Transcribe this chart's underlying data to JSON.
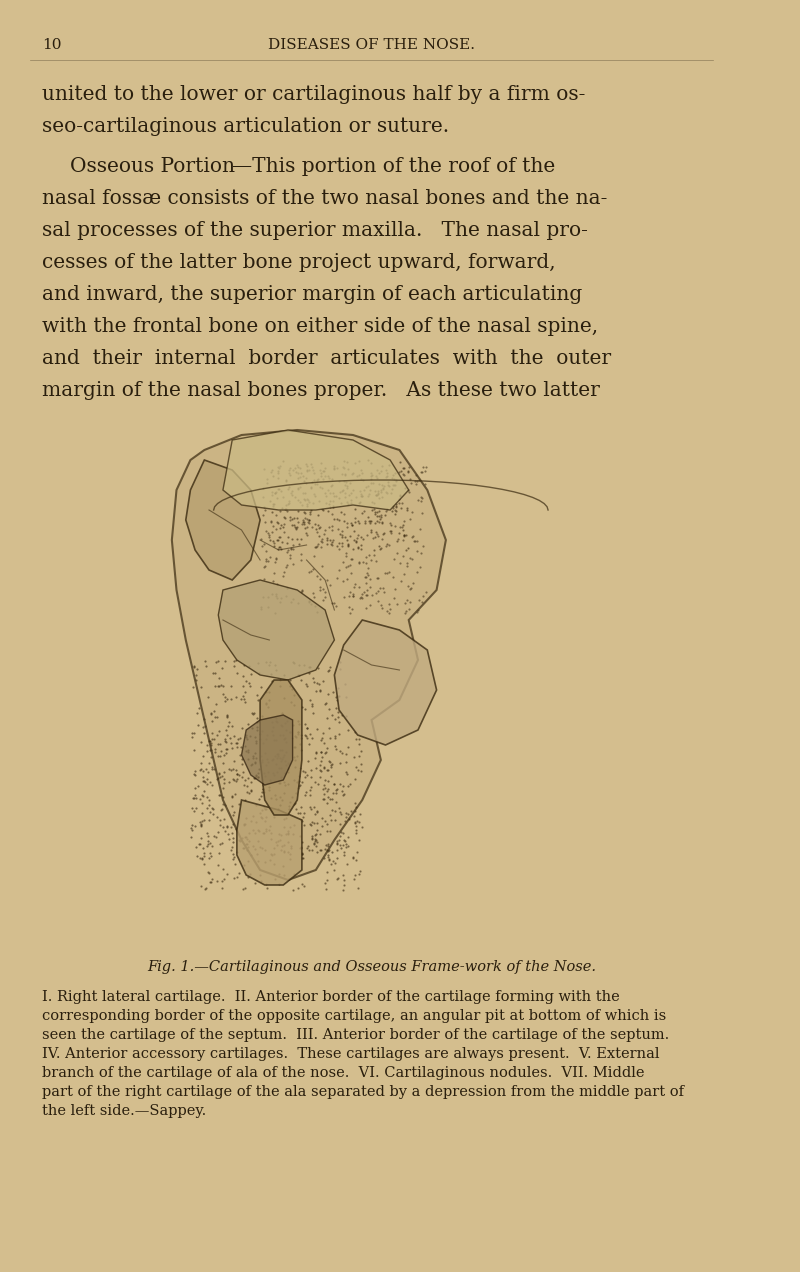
{
  "bg_color": "#d4be8e",
  "text_color": "#2a1f0e",
  "page_num": "10",
  "header": "DISEASES OF THE NOSE.",
  "body_lines": [
    "united to the lower or cartilaginous half by a firm os-",
    "seo-cartilaginous articulation or suture.",
    "    ᴏˢˢᴇᴏᴘˢ ᴘᴏʀᴛɪᴏɴ—This portion of the roof of the",
    "nasal fossæ consists of the two nasal bones and the na-",
    "sal processes of the superior maxilla.   The nasal pro-",
    "cesses of the latter bone project upward, forward,",
    "and inward, the superior margin of each articulating",
    "with the frontal bone on either side of the nasal spine,",
    "and  their  internal  border  articulates  with  the  outer",
    "margin of the nasal bones proper.   As these two latter"
  ],
  "fig_caption": "Fig. 1.—Cartilaginous and Osseous Frame-work of the Nose.",
  "caption_lines": [
    "I. Right lateral cartilage.  II. Anterior border of the cartilage forming with the",
    "corresponding border of the opposite cartilage, an angular pit at bottom of which is",
    "seen the cartilage of the septum.  III. Anterior border of the cartilage of the septum.",
    "IV. Anterior accessory cartilages.  These cartilages are always present.  V. External",
    "branch of the cartilage of ala of the nose.  VI. Cartilaginous nodules.  VII. Middle",
    "part of the right cartilage of the ala separated by a depression from the middle part of",
    "the left side.—Sappey."
  ]
}
